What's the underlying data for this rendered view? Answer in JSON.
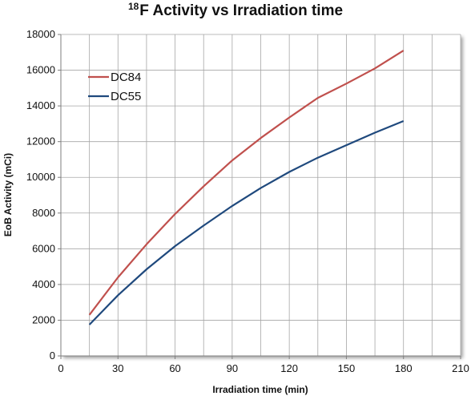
{
  "chart_data": {
    "type": "line",
    "title": {
      "superscript": "18",
      "text": "F  Activity vs Irradiation time"
    },
    "xlabel": "Irradiation time (min)",
    "ylabel": "EoB Activity (mCi)",
    "xlim": [
      0,
      210
    ],
    "ylim": [
      0,
      18000
    ],
    "xticks": [
      0,
      30,
      60,
      90,
      120,
      150,
      180,
      210
    ],
    "yticks": [
      0,
      2000,
      4000,
      6000,
      8000,
      10000,
      12000,
      14000,
      16000,
      18000
    ],
    "x_minor_grid_step": 15,
    "grid": true,
    "legend_position": "top-left",
    "series": [
      {
        "name": "DC84",
        "color": "#C0504D",
        "x": [
          15,
          30,
          45,
          60,
          75,
          90,
          105,
          120,
          135,
          150,
          165,
          180
        ],
        "values": [
          2300,
          4400,
          6250,
          7950,
          9500,
          10950,
          12200,
          13350,
          14450,
          15250,
          16100,
          17100
        ]
      },
      {
        "name": "DC55",
        "color": "#1F497D",
        "x": [
          15,
          30,
          45,
          60,
          75,
          90,
          105,
          120,
          135,
          150,
          165,
          180
        ],
        "values": [
          1750,
          3400,
          4850,
          6150,
          7300,
          8400,
          9400,
          10300,
          11100,
          11800,
          12500,
          13150
        ]
      }
    ]
  }
}
